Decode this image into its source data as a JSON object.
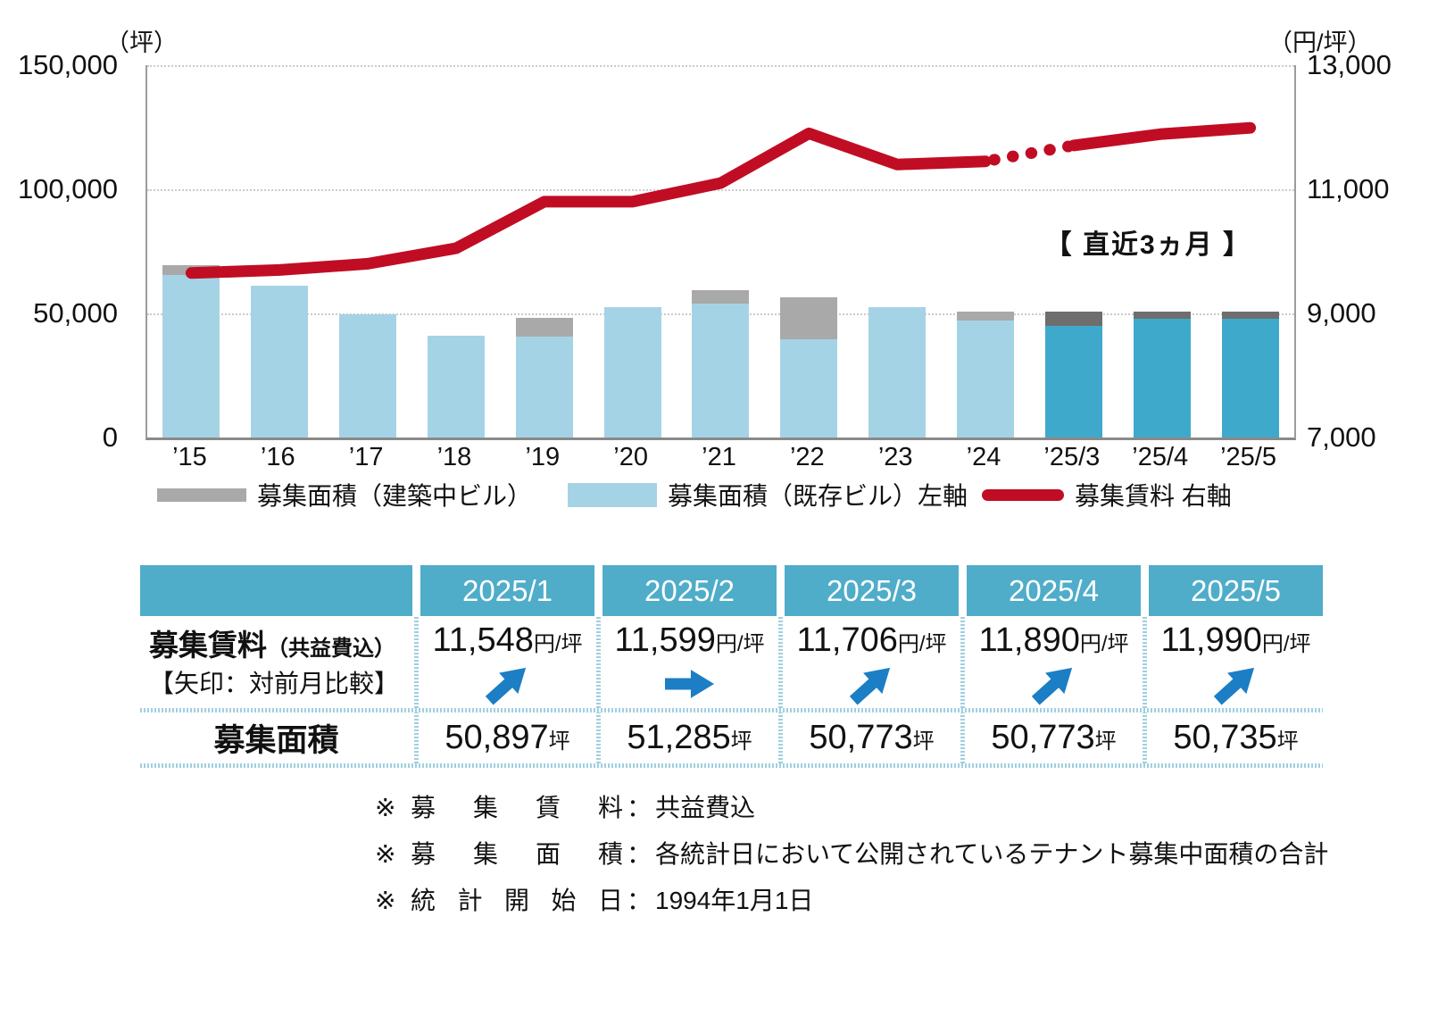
{
  "colors": {
    "bar_existing": "#a5d3e6",
    "bar_existing_recent": "#3fa9cb",
    "bar_construction": "#a9a9a9",
    "bar_construction_recent": "#6e6e6e",
    "line": "#c10d24",
    "table_header": "#4fadc9",
    "arrow": "#1c7ec5",
    "gridline": "#cbcbcb"
  },
  "axes": {
    "left_unit": "（坪）",
    "right_unit": "（円/坪）",
    "left_ticks": [
      "150,000",
      "100,000",
      "50,000",
      "0"
    ],
    "right_ticks": [
      "13,000",
      "11,000",
      "9,000",
      "7,000"
    ]
  },
  "chart_data": {
    "type": "combo stacked-bar + line",
    "categories": [
      "’15",
      "’16",
      "’17",
      "’18",
      "’19",
      "’20",
      "’21",
      "’22",
      "’23",
      "’24",
      "’25/3",
      "’25/4",
      "’25/5"
    ],
    "series": [
      {
        "name": "募集面積（建築中ビル）",
        "type": "bar",
        "stack": "top",
        "axis": "left",
        "values": [
          4000,
          0,
          0,
          0,
          7500,
          0,
          5400,
          17000,
          0,
          3700,
          5773,
          2973,
          2835
        ]
      },
      {
        "name": "募集面積（既存ビル）左軸",
        "type": "bar",
        "stack": "bottom",
        "axis": "left",
        "values": [
          65500,
          61000,
          49800,
          41000,
          40700,
          52500,
          54000,
          39500,
          52500,
          47000,
          45000,
          47800,
          47900
        ]
      },
      {
        "name": "募集賃料 右軸",
        "type": "line",
        "axis": "right",
        "values": [
          9650,
          9700,
          9800,
          10050,
          10800,
          10800,
          11100,
          11900,
          11400,
          11450,
          11706,
          11890,
          11990
        ],
        "dotted_between": [
          9,
          10
        ]
      }
    ],
    "left_axis_range": [
      0,
      150000
    ],
    "right_axis_range": [
      7000,
      13000
    ],
    "recent_start_index": 10,
    "annotation": "【 直近3ヵ月 】",
    "grid": "horizontal dotted",
    "legend_position": "bottom"
  },
  "legend": [
    {
      "label": "募集面積（建築中ビル）",
      "swatch": "gray-bar"
    },
    {
      "label": "募集面積（既存ビル）左軸",
      "swatch": "lightblue-bar"
    },
    {
      "label": "募集賃料 右軸",
      "swatch": "red-line"
    }
  ],
  "table": {
    "row1_label": "募集賃料",
    "row1_label_sub": "（共益費込）",
    "row1_note": "【矢印：対前月比較】",
    "row2_label": "募集面積",
    "rent_unit": "円/坪",
    "area_unit": "坪",
    "columns": [
      {
        "month": "2025/1",
        "rent": "11,548",
        "arrow": "up",
        "area": "50,897"
      },
      {
        "month": "2025/2",
        "rent": "11,599",
        "arrow": "right",
        "area": "51,285"
      },
      {
        "month": "2025/3",
        "rent": "11,706",
        "arrow": "up",
        "area": "50,773"
      },
      {
        "month": "2025/4",
        "rent": "11,890",
        "arrow": "up",
        "area": "50,773"
      },
      {
        "month": "2025/5",
        "rent": "11,990",
        "arrow": "up",
        "area": "50,735"
      }
    ]
  },
  "footnotes": [
    {
      "mark": "※",
      "label": "募 集 賃 料",
      "colon": "：",
      "text": "共益費込"
    },
    {
      "mark": "※",
      "label": "募 集 面 積",
      "colon": "：",
      "text": "各統計日において公開されているテナント募集中面積の合計"
    },
    {
      "mark": "※",
      "label": "統 計 開 始 日",
      "colon": "：",
      "text": "1994年1月1日"
    }
  ]
}
